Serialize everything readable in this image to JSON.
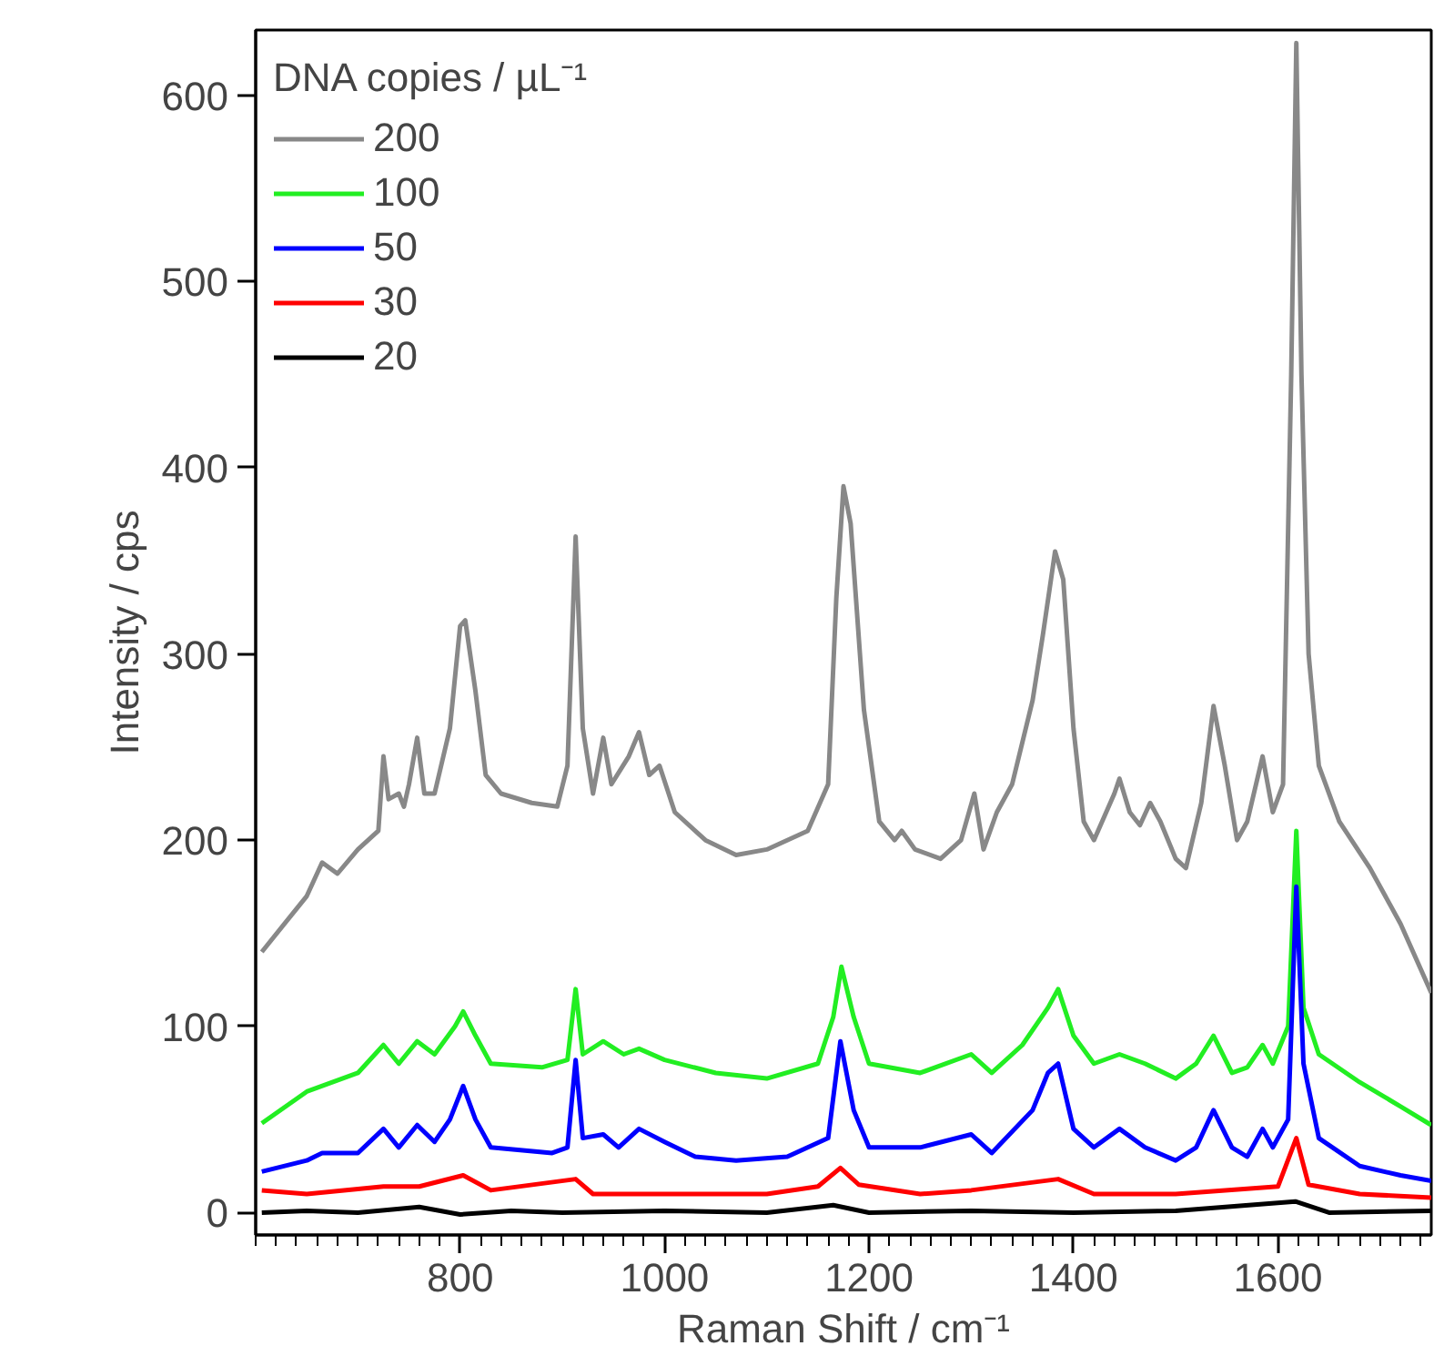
{
  "chart_data": {
    "type": "line",
    "xlabel": "Raman Shift / cm⁻¹",
    "ylabel": "Intensity / cps",
    "legend_title": "DNA copies / µL⁻¹",
    "xlim": [
      600,
      1750
    ],
    "ylim": [
      -12,
      635
    ],
    "xticks": [
      800,
      1000,
      1200,
      1400,
      1600
    ],
    "yticks": [
      0,
      100,
      200,
      300,
      400,
      500,
      600
    ],
    "grid": false,
    "legend": "top left",
    "line_style": "solid",
    "series": [
      {
        "name": "200",
        "color": "#888888",
        "x": [
          606,
          650,
          665,
          680,
          700,
          720,
          725,
          730,
          740,
          745,
          750,
          758,
          765,
          775,
          790,
          800,
          805,
          815,
          825,
          840,
          870,
          895,
          905,
          913,
          920,
          930,
          940,
          948,
          965,
          975,
          985,
          995,
          1010,
          1040,
          1070,
          1100,
          1140,
          1160,
          1168,
          1175,
          1182,
          1195,
          1210,
          1225,
          1232,
          1245,
          1270,
          1290,
          1303,
          1312,
          1325,
          1340,
          1360,
          1370,
          1382,
          1390,
          1400,
          1410,
          1420,
          1440,
          1445,
          1455,
          1465,
          1475,
          1485,
          1500,
          1510,
          1525,
          1537,
          1548,
          1560,
          1570,
          1585,
          1595,
          1605,
          1613,
          1618,
          1623,
          1630,
          1640,
          1660,
          1690,
          1720,
          1750
        ],
        "values": [
          140,
          170,
          188,
          182,
          195,
          205,
          245,
          222,
          225,
          218,
          230,
          255,
          225,
          225,
          260,
          315,
          318,
          280,
          235,
          225,
          220,
          218,
          240,
          363,
          260,
          225,
          255,
          230,
          245,
          258,
          235,
          240,
          215,
          200,
          192,
          195,
          205,
          230,
          330,
          390,
          370,
          270,
          210,
          200,
          205,
          195,
          190,
          200,
          225,
          195,
          215,
          230,
          275,
          310,
          355,
          340,
          260,
          210,
          200,
          225,
          233,
          215,
          208,
          220,
          210,
          190,
          185,
          220,
          272,
          240,
          200,
          210,
          245,
          215,
          230,
          450,
          628,
          450,
          300,
          240,
          210,
          185,
          155,
          118
        ]
      },
      {
        "name": "100",
        "color": "#22ee22",
        "x": [
          606,
          650,
          700,
          725,
          740,
          758,
          775,
          795,
          803,
          815,
          830,
          880,
          905,
          913,
          920,
          940,
          960,
          975,
          1000,
          1050,
          1100,
          1150,
          1165,
          1173,
          1185,
          1200,
          1250,
          1300,
          1320,
          1350,
          1375,
          1385,
          1400,
          1420,
          1445,
          1470,
          1500,
          1520,
          1537,
          1555,
          1570,
          1585,
          1595,
          1610,
          1618,
          1625,
          1640,
          1680,
          1720,
          1750
        ],
        "values": [
          48,
          65,
          75,
          90,
          80,
          92,
          85,
          100,
          108,
          95,
          80,
          78,
          82,
          120,
          85,
          92,
          85,
          88,
          82,
          75,
          72,
          80,
          105,
          132,
          105,
          80,
          75,
          85,
          75,
          90,
          110,
          120,
          95,
          80,
          85,
          80,
          72,
          80,
          95,
          75,
          78,
          90,
          80,
          100,
          205,
          110,
          85,
          70,
          57,
          47
        ]
      },
      {
        "name": "50",
        "color": "#0000ff",
        "x": [
          606,
          650,
          665,
          700,
          725,
          740,
          758,
          775,
          790,
          803,
          815,
          830,
          890,
          905,
          913,
          920,
          940,
          955,
          975,
          1000,
          1030,
          1070,
          1120,
          1160,
          1172,
          1185,
          1200,
          1250,
          1300,
          1320,
          1360,
          1375,
          1385,
          1400,
          1420,
          1445,
          1470,
          1500,
          1520,
          1537,
          1555,
          1570,
          1585,
          1595,
          1610,
          1618,
          1625,
          1640,
          1680,
          1720,
          1750
        ],
        "values": [
          22,
          28,
          32,
          32,
          45,
          35,
          47,
          38,
          50,
          68,
          50,
          35,
          32,
          35,
          82,
          40,
          42,
          35,
          45,
          38,
          30,
          28,
          30,
          40,
          92,
          55,
          35,
          35,
          42,
          32,
          55,
          75,
          80,
          45,
          35,
          45,
          35,
          28,
          35,
          55,
          35,
          30,
          45,
          35,
          50,
          175,
          80,
          40,
          25,
          20,
          17
        ]
      },
      {
        "name": "30",
        "color": "#ff0000",
        "x": [
          606,
          650,
          725,
          760,
          803,
          830,
          913,
          930,
          1000,
          1100,
          1150,
          1172,
          1190,
          1250,
          1300,
          1385,
          1420,
          1500,
          1600,
          1618,
          1630,
          1680,
          1750
        ],
        "values": [
          12,
          10,
          14,
          14,
          20,
          12,
          18,
          10,
          10,
          10,
          14,
          24,
          15,
          10,
          12,
          18,
          10,
          10,
          14,
          40,
          15,
          10,
          8
        ]
      },
      {
        "name": "20",
        "color": "#000000",
        "x": [
          606,
          650,
          700,
          760,
          800,
          850,
          900,
          1000,
          1100,
          1165,
          1200,
          1300,
          1400,
          1500,
          1617,
          1650,
          1750
        ],
        "values": [
          0,
          1,
          0,
          3,
          -1,
          1,
          0,
          1,
          0,
          4,
          0,
          1,
          0,
          1,
          6,
          0,
          1
        ]
      }
    ]
  }
}
